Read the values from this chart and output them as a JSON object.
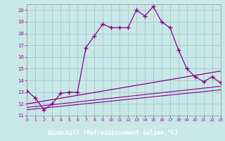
{
  "background_color": "#c8e8e8",
  "grid_color": "#a8cccc",
  "line_color": "#8b008b",
  "xlabel": "Windchill (Refroidissement éolien,°C)",
  "xlabel_bg": "#6a2080",
  "xlabel_fg": "#ffffff",
  "xlim": [
    0,
    23
  ],
  "ylim": [
    11,
    20.5
  ],
  "yticks": [
    11,
    12,
    13,
    14,
    15,
    16,
    17,
    18,
    19,
    20
  ],
  "xticks": [
    0,
    1,
    2,
    3,
    4,
    5,
    6,
    7,
    8,
    9,
    10,
    11,
    12,
    13,
    14,
    15,
    16,
    17,
    18,
    19,
    20,
    21,
    22,
    23
  ],
  "main_x": [
    0,
    1,
    2,
    3,
    4,
    5,
    6,
    7,
    8,
    9,
    10,
    11,
    12,
    13,
    14,
    15,
    16,
    17,
    18,
    19,
    20,
    21,
    22,
    23
  ],
  "main_y": [
    13.1,
    12.5,
    11.5,
    12.0,
    12.9,
    13.0,
    13.0,
    16.8,
    17.8,
    18.8,
    18.5,
    18.5,
    18.5,
    20.0,
    19.5,
    20.3,
    19.0,
    18.5,
    16.6,
    15.0,
    14.3,
    13.9,
    14.3,
    13.8
  ],
  "line1_x": [
    0,
    23
  ],
  "line1_y": [
    11.5,
    13.2
  ],
  "line2_x": [
    0,
    23
  ],
  "line2_y": [
    11.7,
    13.5
  ],
  "line3_x": [
    0,
    23
  ],
  "line3_y": [
    12.0,
    14.8
  ]
}
